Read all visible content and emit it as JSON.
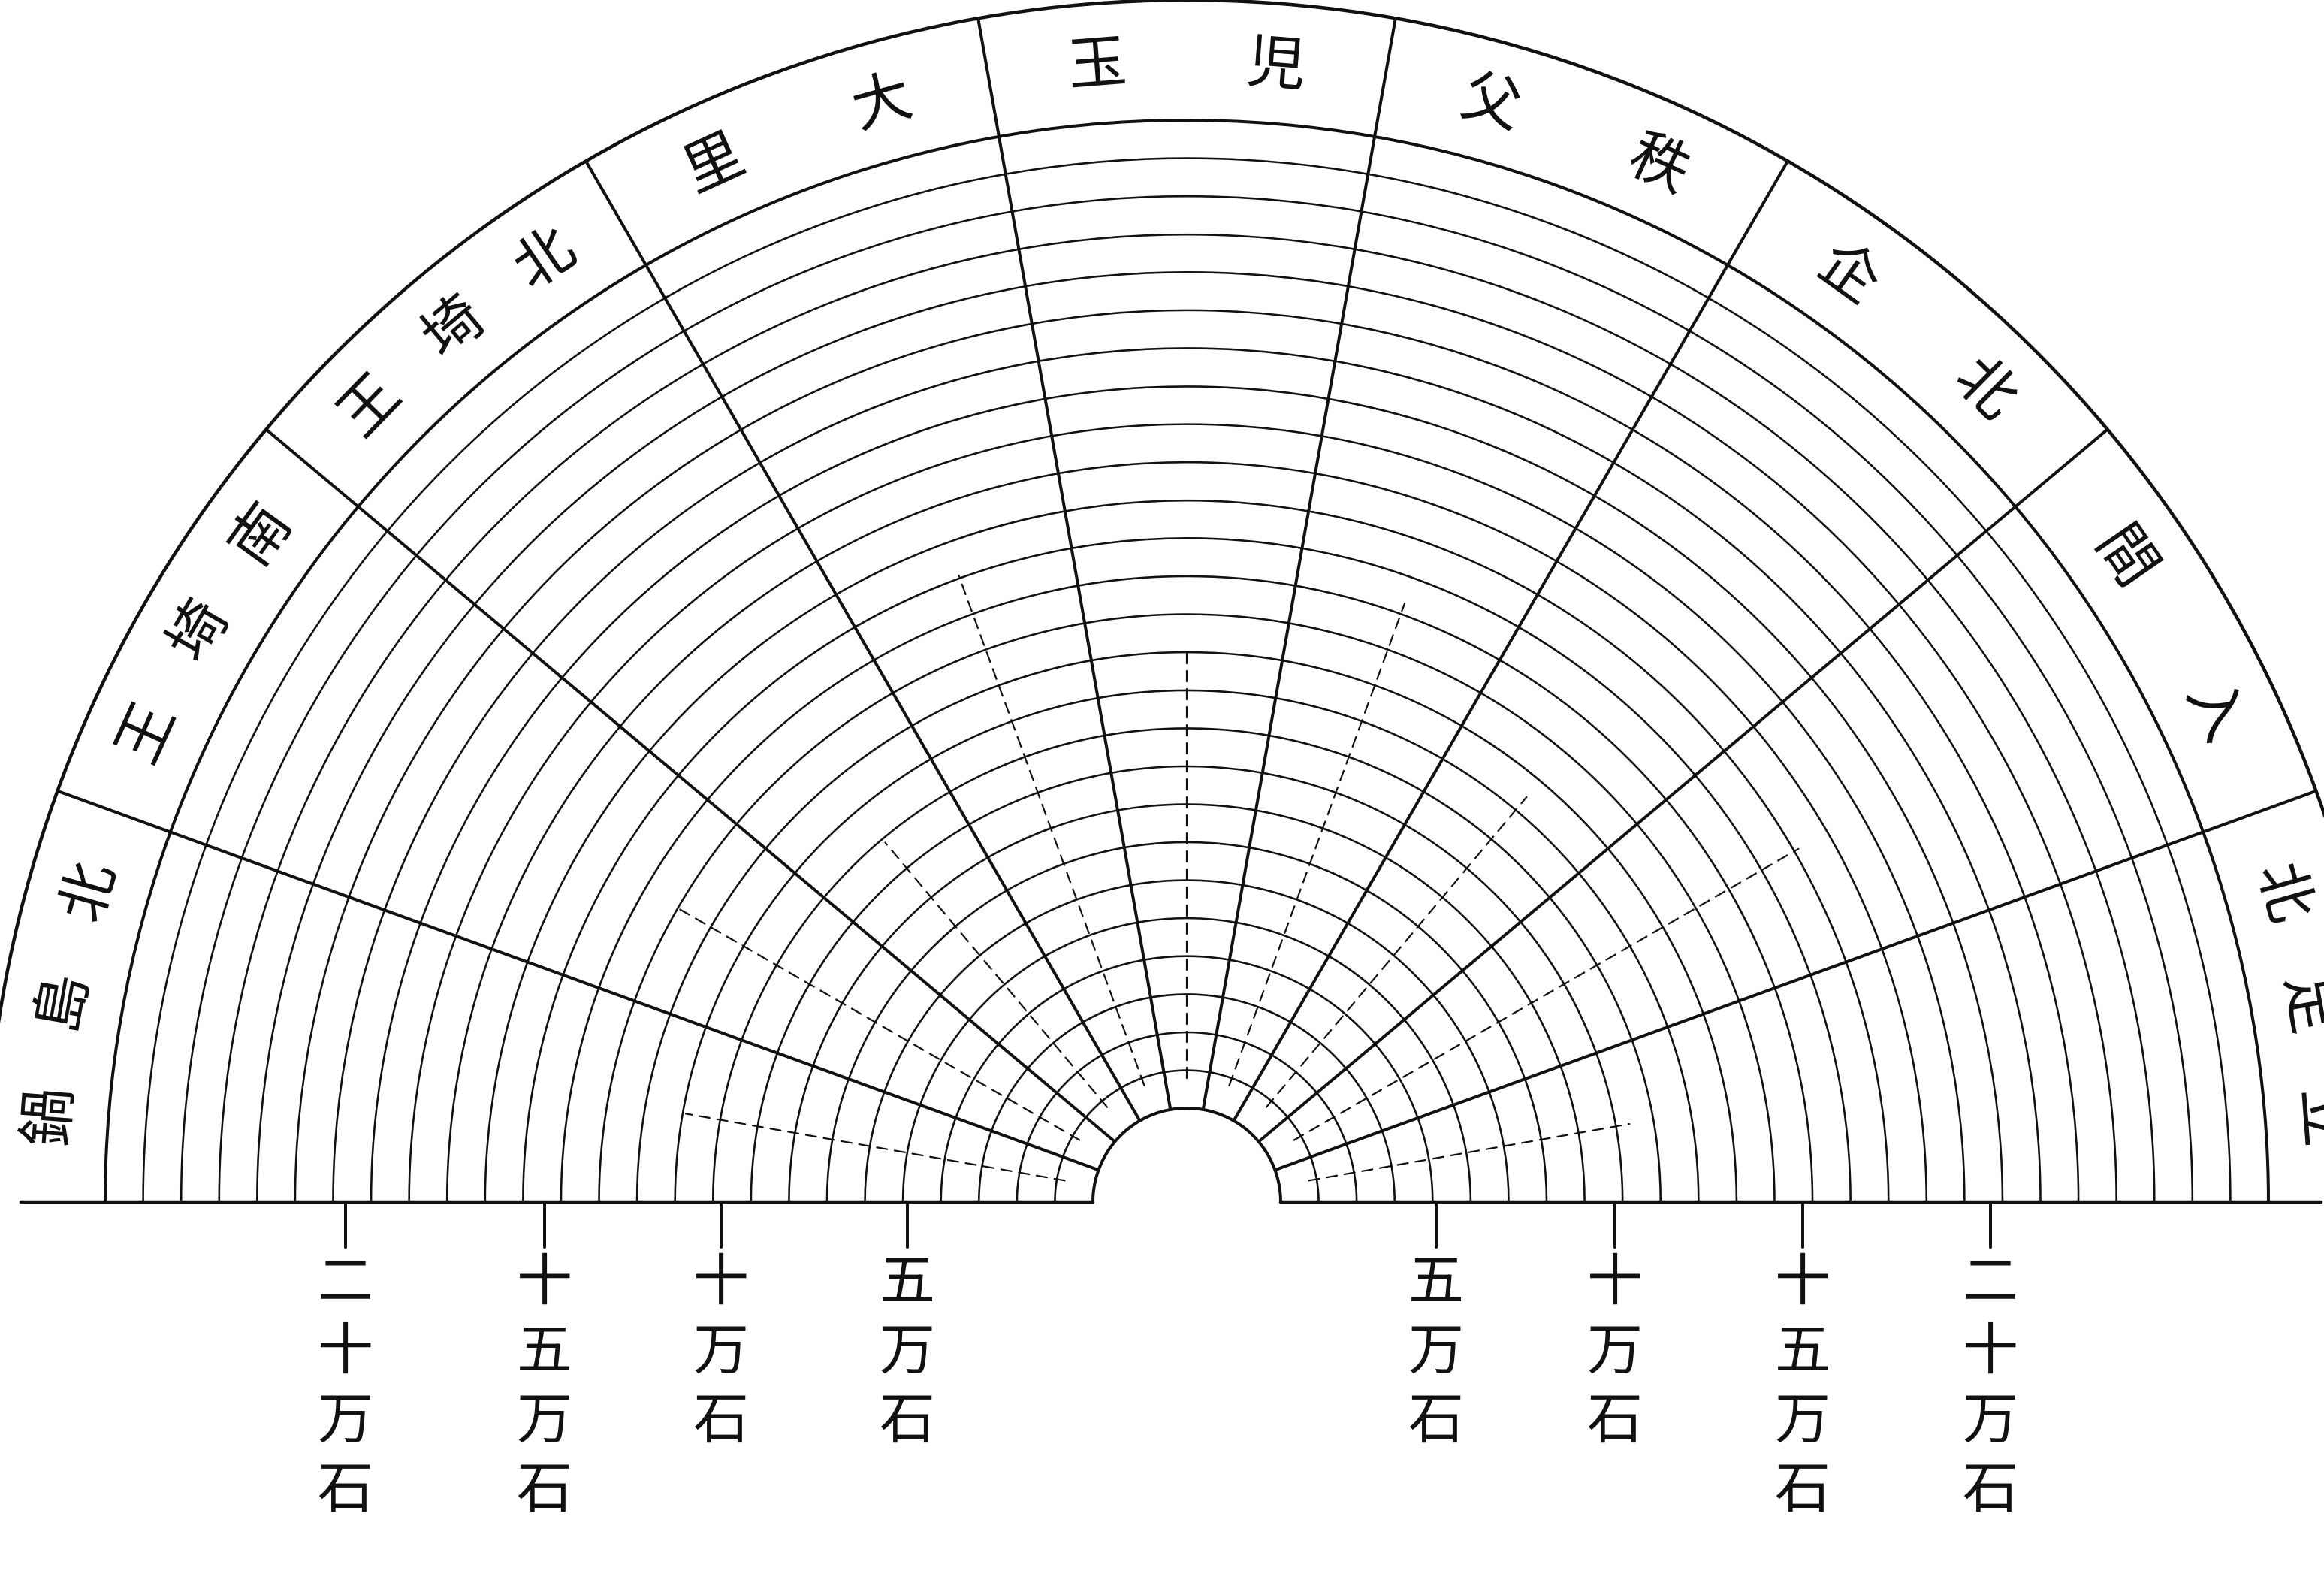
{
  "sector_labels": [
    {
      "id": "sector-1",
      "text": "鍋島北"
    },
    {
      "id": "sector-2",
      "text": "王埼南"
    },
    {
      "id": "sector-3",
      "text": "王埼北"
    },
    {
      "id": "sector-4",
      "text": "里大"
    },
    {
      "id": "sector-5",
      "text": "玉児"
    },
    {
      "id": "sector-6",
      "text": "父秩"
    },
    {
      "id": "sector-7",
      "text": "企北"
    },
    {
      "id": "sector-8",
      "text": "間入"
    },
    {
      "id": "sector-9",
      "text": "北足立"
    }
  ],
  "scale_labels_left": [
    {
      "id": "left-20",
      "text": "二十万石"
    },
    {
      "id": "left-15",
      "text": "十五万石"
    },
    {
      "id": "left-10",
      "text": "十万石"
    },
    {
      "id": "left-5",
      "text": "五万石"
    }
  ],
  "scale_labels_right": [
    {
      "id": "right-5",
      "text": "五万石"
    },
    {
      "id": "right-10",
      "text": "十万石"
    },
    {
      "id": "right-15",
      "text": "十五万石"
    },
    {
      "id": "right-20",
      "text": "二十万石"
    }
  ],
  "colors": {
    "ink": "#111111",
    "paper": "#ffffff"
  }
}
